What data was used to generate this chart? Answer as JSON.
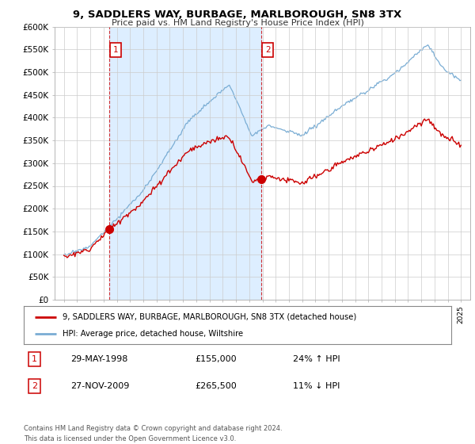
{
  "title": "9, SADDLERS WAY, BURBAGE, MARLBOROUGH, SN8 3TX",
  "subtitle": "Price paid vs. HM Land Registry's House Price Index (HPI)",
  "ylim": [
    0,
    600000
  ],
  "yticks": [
    0,
    50000,
    100000,
    150000,
    200000,
    250000,
    300000,
    350000,
    400000,
    450000,
    500000,
    550000,
    600000
  ],
  "ytick_labels": [
    "£0",
    "£50K",
    "£100K",
    "£150K",
    "£200K",
    "£250K",
    "£300K",
    "£350K",
    "£400K",
    "£450K",
    "£500K",
    "£550K",
    "£600K"
  ],
  "property_color": "#cc0000",
  "hpi_color": "#7aadd4",
  "sale1_date": 1998.41,
  "sale1_price": 155000,
  "sale2_date": 2009.9,
  "sale2_price": 265500,
  "vline_color": "#cc0000",
  "shade_color": "#ddeeff",
  "legend_property": "9, SADDLERS WAY, BURBAGE, MARLBOROUGH, SN8 3TX (detached house)",
  "legend_hpi": "HPI: Average price, detached house, Wiltshire",
  "table_row1": [
    "1",
    "29-MAY-1998",
    "£155,000",
    "24% ↑ HPI"
  ],
  "table_row2": [
    "2",
    "27-NOV-2009",
    "£265,500",
    "11% ↓ HPI"
  ],
  "footnote": "Contains HM Land Registry data © Crown copyright and database right 2024.\nThis data is licensed under the Open Government Licence v3.0.",
  "background_color": "#ffffff",
  "grid_color": "#cccccc"
}
